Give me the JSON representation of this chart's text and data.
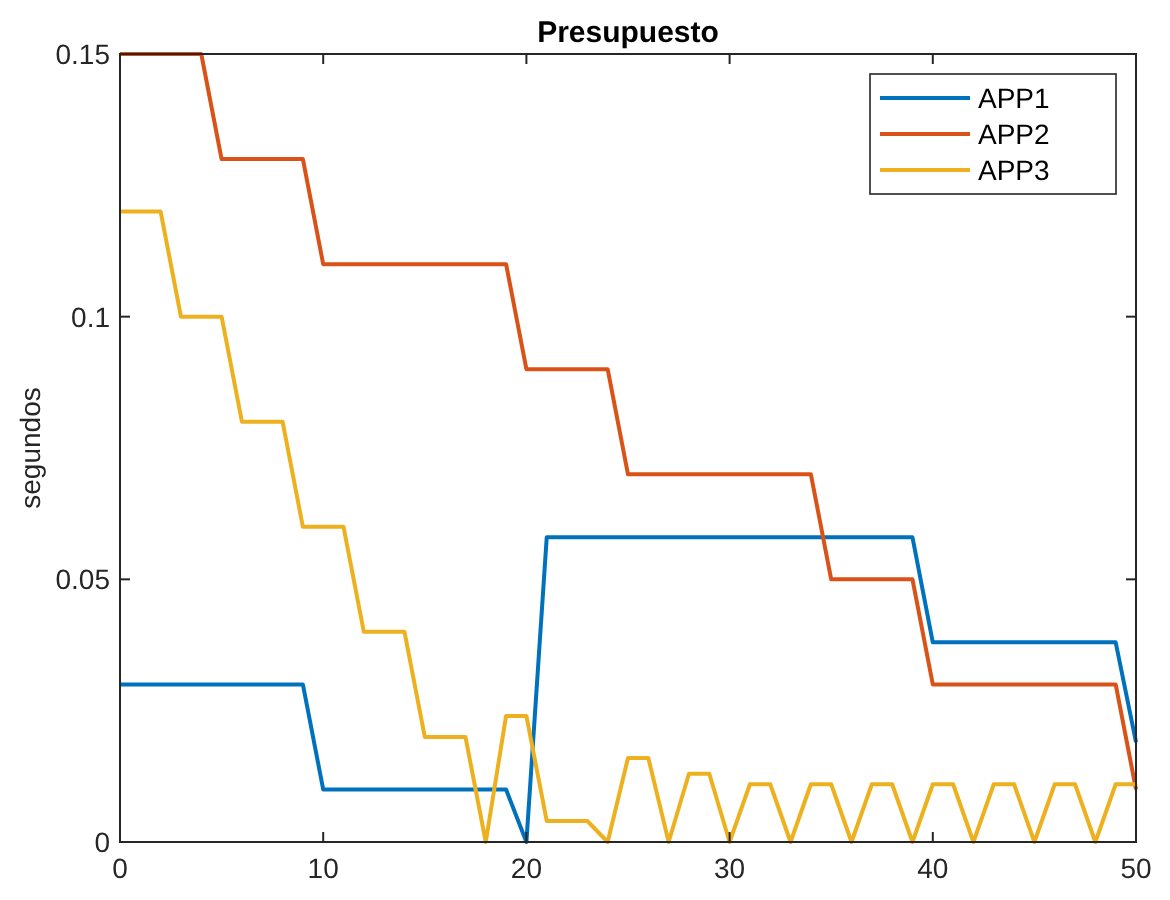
{
  "chart_data": {
    "type": "line",
    "title": "Presupuesto",
    "ylabel": "segundos",
    "x": [
      0,
      1,
      2,
      3,
      4,
      5,
      6,
      7,
      8,
      9,
      10,
      11,
      12,
      13,
      14,
      15,
      16,
      17,
      18,
      19,
      20,
      21,
      22,
      23,
      24,
      25,
      26,
      27,
      28,
      29,
      30,
      31,
      32,
      33,
      34,
      35,
      36,
      37,
      38,
      39,
      40,
      41,
      42,
      43,
      44,
      45,
      46,
      47,
      48,
      49,
      50
    ],
    "series": [
      {
        "name": "APP1",
        "color": "#0072bd",
        "values": [
          0.03,
          0.03,
          0.03,
          0.03,
          0.03,
          0.03,
          0.03,
          0.03,
          0.03,
          0.03,
          0.01,
          0.01,
          0.01,
          0.01,
          0.01,
          0.01,
          0.01,
          0.01,
          0.01,
          0.01,
          0,
          0.058,
          0.058,
          0.058,
          0.058,
          0.058,
          0.058,
          0.058,
          0.058,
          0.058,
          0.058,
          0.058,
          0.058,
          0.058,
          0.058,
          0.058,
          0.058,
          0.058,
          0.058,
          0.058,
          0.038,
          0.038,
          0.038,
          0.038,
          0.038,
          0.038,
          0.038,
          0.038,
          0.038,
          0.038,
          0.019
        ]
      },
      {
        "name": "APP2",
        "color": "#d95319",
        "values": [
          0.15,
          0.15,
          0.15,
          0.15,
          0.15,
          0.13,
          0.13,
          0.13,
          0.13,
          0.13,
          0.11,
          0.11,
          0.11,
          0.11,
          0.11,
          0.11,
          0.11,
          0.11,
          0.11,
          0.11,
          0.09,
          0.09,
          0.09,
          0.09,
          0.09,
          0.07,
          0.07,
          0.07,
          0.07,
          0.07,
          0.07,
          0.07,
          0.07,
          0.07,
          0.07,
          0.05,
          0.05,
          0.05,
          0.05,
          0.05,
          0.03,
          0.03,
          0.03,
          0.03,
          0.03,
          0.03,
          0.03,
          0.03,
          0.03,
          0.03,
          0.01
        ]
      },
      {
        "name": "APP3",
        "color": "#edb120",
        "values": [
          0.12,
          0.12,
          0.12,
          0.1,
          0.1,
          0.1,
          0.08,
          0.08,
          0.08,
          0.06,
          0.06,
          0.06,
          0.04,
          0.04,
          0.04,
          0.02,
          0.02,
          0.02,
          0,
          0.024,
          0.024,
          0.004,
          0.004,
          0.004,
          0,
          0.016,
          0.016,
          0,
          0.013,
          0.013,
          0,
          0.011,
          0.011,
          0,
          0.011,
          0.011,
          0,
          0.011,
          0.011,
          0,
          0.011,
          0.011,
          0,
          0.011,
          0.011,
          0,
          0.011,
          0.011,
          0,
          0.011,
          0.011
        ]
      }
    ],
    "xlim": [
      0,
      50
    ],
    "xticks": [
      0,
      10,
      20,
      30,
      40,
      50
    ],
    "ylim": [
      0,
      0.15
    ],
    "yticks": [
      0,
      0.05,
      0.1,
      0.15
    ],
    "legend": "top right",
    "grid": false,
    "marker": "none",
    "line_style": "solid"
  }
}
